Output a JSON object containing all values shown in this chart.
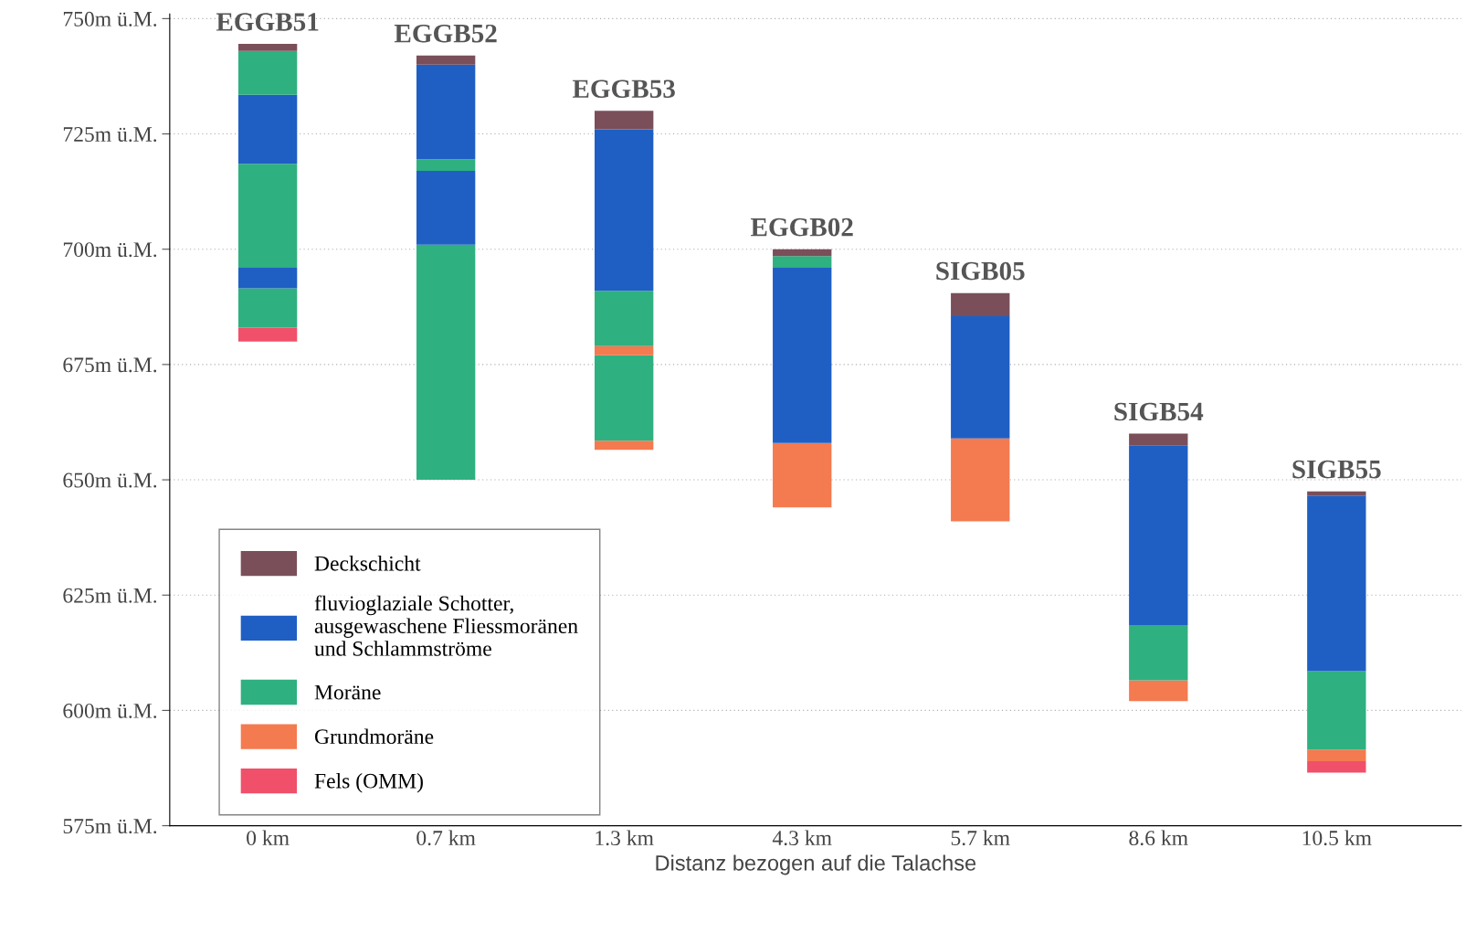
{
  "chart_data": {
    "type": "bar",
    "xlabel": "Distanz bezogen auf die Talachse",
    "categories": [
      "0 km",
      "0.7 km",
      "1.3 km",
      "4.3 km",
      "5.7 km",
      "8.6 km",
      "10.5 km"
    ],
    "series": [
      {
        "name": "Fels (OMM)",
        "color": "#f0506a",
        "base": [
          680,
          null,
          null,
          null,
          null,
          null,
          586.5
        ],
        "values": [
          3,
          null,
          null,
          null,
          null,
          null,
          2.5
        ]
      },
      {
        "name": "Grundmoräne",
        "color": "#f47a50",
        "base": [
          null,
          null,
          656.5,
          644,
          641,
          602,
          589
        ],
        "values": [
          null,
          null,
          2,
          14,
          18,
          4.5,
          2.5
        ]
      },
      {
        "name": "Moräne",
        "color": "#2fb080",
        "base": [
          683,
          650,
          658.5,
          null,
          null,
          606.5,
          591.5
        ],
        "values": [
          8.5,
          51,
          18.5,
          null,
          null,
          12,
          17
        ]
      },
      {
        "color": "#f47a50",
        "base": [
          null,
          null,
          677,
          null,
          null,
          null,
          null
        ],
        "values": [
          null,
          null,
          2,
          null,
          null,
          null,
          null
        ]
      },
      {
        "color": "#2fb080",
        "base": [
          null,
          null,
          679,
          null,
          null,
          null,
          null
        ],
        "values": [
          null,
          null,
          12,
          null,
          null,
          null,
          null
        ]
      },
      {
        "name": "fluvioglaziale Schotter,\nausgewaschene Fliessmoränen\nund Schlammströme",
        "color": "#1f5fc4",
        "base": [
          691.5,
          701,
          691,
          658,
          659,
          618.5,
          608.5
        ],
        "values": [
          4.5,
          16,
          35,
          38,
          26.5,
          39,
          38
        ]
      },
      {
        "color": "#2fb080",
        "base": [
          696,
          717,
          null,
          696,
          null,
          null,
          null
        ],
        "values": [
          22.5,
          2.5,
          null,
          2.5,
          null,
          null,
          null
        ]
      },
      {
        "color": "#1f5fc4",
        "base": [
          718.5,
          719.5,
          null,
          null,
          null,
          null,
          null
        ],
        "values": [
          15,
          20.5,
          null,
          null,
          null,
          null,
          null
        ]
      },
      {
        "color": "#2fb080",
        "base": [
          733.5,
          null,
          null,
          null,
          null,
          null,
          null
        ],
        "values": [
          9.5,
          null,
          null,
          null,
          null,
          null,
          null
        ]
      },
      {
        "name": "Deckschicht",
        "color": "#7a4f5a",
        "base": [
          743,
          740,
          726,
          698.5,
          685.5,
          657.5,
          646.5
        ],
        "values": [
          1.5,
          2,
          4,
          1.5,
          5,
          2.5,
          1
        ]
      }
    ],
    "annotations": [
      "EGGB51",
      "EGGB52",
      "EGGB53",
      "EGGB02",
      "SIGB05",
      "SIGB54",
      "SIGB55"
    ],
    "ylim": [
      575,
      751
    ],
    "yticks": [
      {
        "value": 575,
        "label": "575m ü.M."
      },
      {
        "value": 600,
        "label": "600m ü.M."
      },
      {
        "value": 625,
        "label": "625m ü.M."
      },
      {
        "value": 650,
        "label": "650m ü.M."
      },
      {
        "value": 675,
        "label": "675m ü.M."
      },
      {
        "value": 700,
        "label": "700m ü.M."
      },
      {
        "value": 725,
        "label": "725m ü.M."
      },
      {
        "value": 750,
        "label": "750m ü.M."
      }
    ],
    "grid": "y",
    "legend": "bottom left"
  }
}
